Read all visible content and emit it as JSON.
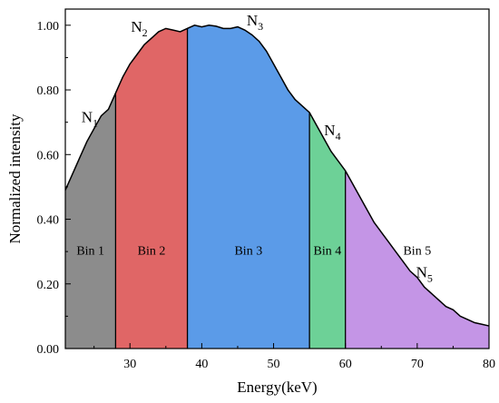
{
  "chart_data": {
    "type": "area",
    "xlabel": "Energy(keV)",
    "ylabel": "Normalized intensity",
    "xlim": [
      21,
      80
    ],
    "ylim": [
      0,
      1.05
    ],
    "x_ticks": [
      30,
      40,
      50,
      60,
      70,
      80
    ],
    "x_tick_labels": [
      "30",
      "40",
      "50",
      "60",
      "70",
      "80"
    ],
    "y_ticks": [
      0,
      0.2,
      0.4,
      0.6,
      0.8,
      1.0
    ],
    "y_tick_labels": [
      "0.00",
      "0.20",
      "0.40",
      "0.60",
      "0.80",
      "1.00"
    ],
    "grid": false,
    "curve": {
      "x": [
        21,
        22,
        23,
        24,
        25,
        26,
        27,
        28,
        29,
        30,
        31,
        32,
        33,
        34,
        35,
        36,
        37,
        38,
        39,
        40,
        41,
        42,
        43,
        44,
        45,
        46,
        47,
        48,
        49,
        50,
        51,
        52,
        53,
        54,
        55,
        56,
        57,
        58,
        59,
        60,
        61,
        62,
        63,
        64,
        65,
        66,
        67,
        68,
        69,
        70,
        71,
        72,
        73,
        74,
        75,
        76,
        77,
        78,
        79,
        80
      ],
      "y": [
        0.49,
        0.54,
        0.59,
        0.64,
        0.68,
        0.72,
        0.74,
        0.79,
        0.84,
        0.88,
        0.91,
        0.94,
        0.96,
        0.98,
        0.99,
        0.985,
        0.98,
        0.99,
        1.0,
        0.995,
        1.0,
        0.997,
        0.99,
        0.99,
        0.995,
        0.985,
        0.97,
        0.95,
        0.92,
        0.88,
        0.84,
        0.8,
        0.77,
        0.75,
        0.73,
        0.69,
        0.65,
        0.61,
        0.58,
        0.55,
        0.51,
        0.47,
        0.43,
        0.39,
        0.36,
        0.33,
        0.3,
        0.27,
        0.24,
        0.22,
        0.19,
        0.17,
        0.15,
        0.13,
        0.12,
        0.1,
        0.09,
        0.08,
        0.075,
        0.07
      ]
    },
    "bins": [
      {
        "label": "Bin 1",
        "x_start": 21,
        "x_end": 28,
        "color": "#8c8c8c"
      },
      {
        "label": "Bin 2",
        "x_start": 28,
        "x_end": 38,
        "color": "#e06666"
      },
      {
        "label": "Bin 3",
        "x_start": 38,
        "x_end": 55,
        "color": "#5b9be8"
      },
      {
        "label": "Bin 4",
        "x_start": 55,
        "x_end": 60,
        "color": "#6dd197"
      },
      {
        "label": "Bin 5",
        "x_start": 60,
        "x_end": 80,
        "color": "#c495e6"
      }
    ],
    "annotations": [
      {
        "base": "N",
        "sub": "1",
        "x": 24.4,
        "y": 0.7
      },
      {
        "base": "N",
        "sub": "2",
        "x": 31.3,
        "y": 0.98
      },
      {
        "base": "N",
        "sub": "3",
        "x": 47.4,
        "y": 1.0
      },
      {
        "base": "N",
        "sub": "4",
        "x": 58.2,
        "y": 0.66
      },
      {
        "base": "N",
        "sub": "5",
        "x": 71.0,
        "y": 0.22
      }
    ]
  }
}
